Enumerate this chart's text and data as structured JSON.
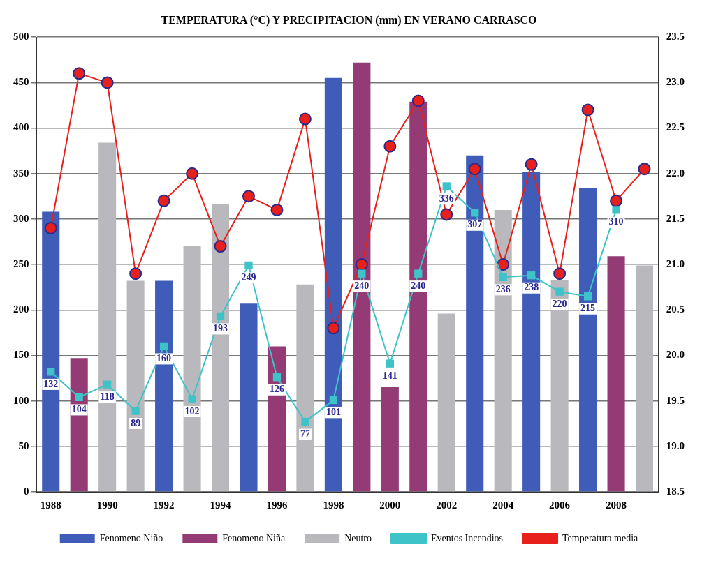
{
  "chart_data": {
    "type": "bar",
    "title": "TEMPERATURA (°C) Y PRECIPITACION (mm) EN VERANO CARRASCO",
    "categories": [
      "1988",
      null,
      "1990",
      null,
      "1992",
      null,
      "1994",
      null,
      "1996",
      null,
      "1998",
      null,
      "2000",
      null,
      "2002",
      null,
      "2004",
      null,
      "2006",
      null,
      "2008",
      null
    ],
    "series": [
      {
        "name": "Fenomeno Niño",
        "color": "#3f5cb8",
        "values": [
          308,
          null,
          null,
          null,
          232,
          null,
          null,
          207,
          null,
          null,
          455,
          null,
          null,
          null,
          null,
          370,
          null,
          352,
          null,
          334,
          null,
          null
        ]
      },
      {
        "name": "Fenomeno Niña",
        "color": "#943a74",
        "values": [
          null,
          147,
          null,
          null,
          null,
          null,
          null,
          null,
          160,
          null,
          null,
          472,
          115,
          429,
          null,
          null,
          null,
          null,
          null,
          null,
          259,
          null
        ]
      },
      {
        "name": "Neutro",
        "color": "#b9b9bd",
        "values": [
          null,
          null,
          384,
          232,
          null,
          270,
          316,
          null,
          null,
          228,
          null,
          null,
          null,
          null,
          196,
          null,
          310,
          null,
          233,
          null,
          null,
          249
        ]
      },
      {
        "name": "Eventos Incendios",
        "type": "line",
        "color": "#3ec3c8",
        "marker": "square",
        "values": [
          132,
          104,
          118,
          89,
          160,
          102,
          193,
          249,
          126,
          77,
          101,
          240,
          141,
          240,
          336,
          307,
          236,
          238,
          220,
          215,
          310,
          null
        ],
        "value_labels": [
          "132",
          "104",
          "118",
          "89",
          "160",
          "102",
          "193",
          "249",
          "126",
          "77",
          "101",
          "240",
          "141",
          "240",
          "336",
          "307",
          "236",
          "238",
          "220",
          "215",
          "310",
          null
        ]
      },
      {
        "name": "Temperatura media",
        "type": "line",
        "axis": "y2",
        "color": "#e8201c",
        "marker": "circle",
        "values": [
          21.4,
          23.1,
          23.0,
          20.9,
          21.7,
          22.0,
          21.2,
          21.75,
          21.6,
          22.6,
          20.3,
          21.0,
          22.3,
          22.8,
          21.55,
          22.05,
          21.0,
          22.1,
          20.9,
          22.7,
          21.7,
          22.05
        ]
      }
    ],
    "ylim": [
      0,
      500
    ],
    "yticks": [
      0,
      50,
      100,
      150,
      200,
      250,
      300,
      350,
      400,
      450,
      500
    ],
    "y2lim": [
      18.5,
      23.5
    ],
    "y2ticks": [
      {
        "value": 18.5,
        "label": "18.5"
      },
      {
        "value": 19,
        "label": "19.0"
      },
      {
        "value": 19.5,
        "label": "19.5"
      },
      {
        "value": 20,
        "label": "20.0"
      },
      {
        "value": 20.5,
        "label": "20.5"
      },
      {
        "value": 21,
        "label": "21.0"
      },
      {
        "value": 21.5,
        "label": "21.5"
      },
      {
        "value": 22,
        "label": "22.0"
      },
      {
        "value": 22.5,
        "label": "22.5"
      },
      {
        "value": 23,
        "label": "23.0"
      },
      {
        "value": 23.5,
        "label": "23.5"
      }
    ],
    "grid": "y",
    "legend": "bottom",
    "line_style": "solid"
  }
}
